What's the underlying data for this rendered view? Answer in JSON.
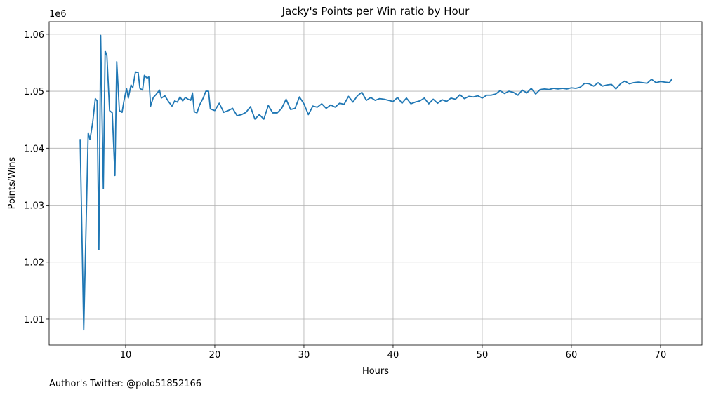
{
  "chart_data": {
    "type": "line",
    "title": "Jacky's Points per Win ratio by Hour",
    "x_label": "Hours",
    "y_label": "Points/Wins",
    "y_offset_text": "1e6",
    "footer": "Author's Twitter: @polo51852166",
    "xlim": [
      1.42,
      74.65
    ],
    "ylim": [
      1.00544,
      1.0622
    ],
    "xticks": [
      10,
      20,
      30,
      40,
      50,
      60,
      70
    ],
    "yticks": [
      1.01,
      1.02,
      1.03,
      1.04,
      1.05,
      1.06
    ],
    "grid": true,
    "series": [
      {
        "color": "#1f77b4",
        "x": [
          4.9,
          5.3,
          5.8,
          6.0,
          6.3,
          6.6,
          6.8,
          7.0,
          7.2,
          7.5,
          7.7,
          7.9,
          8.2,
          8.5,
          8.8,
          9.0,
          9.3,
          9.6,
          9.8,
          10.1,
          10.3,
          10.6,
          10.8,
          11.1,
          11.4,
          11.6,
          11.9,
          12.1,
          12.4,
          12.6,
          12.8,
          13.1,
          13.4,
          13.8,
          14.0,
          14.4,
          14.8,
          15.2,
          15.5,
          15.8,
          16.1,
          16.4,
          16.7,
          17.0,
          17.3,
          17.5,
          17.7,
          18.0,
          18.3,
          18.7,
          19.0,
          19.3,
          19.5,
          20.0,
          20.5,
          21.0,
          21.5,
          22.0,
          22.5,
          23.0,
          23.5,
          24.0,
          24.5,
          25.0,
          25.5,
          26.0,
          26.5,
          27.0,
          27.5,
          28.0,
          28.5,
          29.0,
          29.5,
          30.0,
          30.5,
          31.0,
          31.5,
          32.0,
          32.5,
          33.0,
          33.5,
          34.0,
          34.5,
          35.0,
          35.5,
          36.0,
          36.5,
          37.0,
          37.5,
          38.0,
          38.5,
          39.0,
          39.5,
          40.0,
          40.5,
          41.0,
          41.5,
          42.0,
          42.5,
          43.0,
          43.5,
          44.0,
          44.5,
          45.0,
          45.5,
          46.0,
          46.5,
          47.0,
          47.5,
          48.0,
          48.5,
          49.0,
          49.5,
          50.0,
          50.5,
          51.0,
          51.5,
          52.0,
          52.5,
          53.0,
          53.5,
          54.0,
          54.5,
          55.0,
          55.5,
          56.0,
          56.5,
          57.0,
          57.5,
          58.0,
          58.5,
          59.0,
          59.5,
          60.0,
          60.5,
          61.0,
          61.5,
          62.0,
          62.5,
          63.0,
          63.5,
          64.0,
          64.5,
          65.0,
          65.5,
          66.0,
          66.5,
          67.0,
          67.5,
          68.0,
          68.5,
          69.0,
          69.5,
          70.0,
          70.5,
          71.0,
          71.3
        ],
        "values": [
          1.0416,
          1.0081,
          1.0427,
          1.0415,
          1.0445,
          1.0487,
          1.0483,
          1.0222,
          1.0598,
          1.0329,
          1.0571,
          1.0562,
          1.0466,
          1.0462,
          1.0352,
          1.0552,
          1.0466,
          1.0463,
          1.0482,
          1.0505,
          1.0488,
          1.0511,
          1.0506,
          1.0534,
          1.0533,
          1.0505,
          1.0502,
          1.0528,
          1.0523,
          1.0525,
          1.0474,
          1.0489,
          1.0494,
          1.0502,
          1.0488,
          1.0492,
          1.0482,
          1.0474,
          1.0483,
          1.0481,
          1.049,
          1.0483,
          1.0489,
          1.0486,
          1.0484,
          1.0497,
          1.0464,
          1.0462,
          1.0476,
          1.0488,
          1.05,
          1.05,
          1.0469,
          1.0466,
          1.0479,
          1.0463,
          1.0466,
          1.047,
          1.0457,
          1.0459,
          1.0463,
          1.0473,
          1.0451,
          1.0459,
          1.0451,
          1.0475,
          1.0462,
          1.0462,
          1.047,
          1.0486,
          1.0468,
          1.047,
          1.049,
          1.0478,
          1.0459,
          1.0474,
          1.0472,
          1.0478,
          1.047,
          1.0476,
          1.0472,
          1.0479,
          1.0477,
          1.0491,
          1.0481,
          1.0492,
          1.0498,
          1.0484,
          1.0489,
          1.0484,
          1.0487,
          1.0486,
          1.0484,
          1.0482,
          1.0489,
          1.0479,
          1.0488,
          1.0478,
          1.0481,
          1.0483,
          1.0488,
          1.0478,
          1.0486,
          1.0479,
          1.0485,
          1.0482,
          1.0488,
          1.0486,
          1.0494,
          1.0487,
          1.0491,
          1.049,
          1.0492,
          1.0488,
          1.0493,
          1.0493,
          1.0495,
          1.0501,
          1.0496,
          1.05,
          1.0498,
          1.0493,
          1.0502,
          1.0497,
          1.0505,
          1.0495,
          1.0503,
          1.0504,
          1.0503,
          1.0505,
          1.0504,
          1.0505,
          1.0504,
          1.0506,
          1.0505,
          1.0507,
          1.0514,
          1.0513,
          1.0509,
          1.0515,
          1.0509,
          1.0511,
          1.0512,
          1.0504,
          1.0513,
          1.0518,
          1.0513,
          1.0515,
          1.0516,
          1.0515,
          1.0514,
          1.0521,
          1.0515,
          1.0517,
          1.0516,
          1.0515,
          1.0522
        ]
      }
    ]
  }
}
